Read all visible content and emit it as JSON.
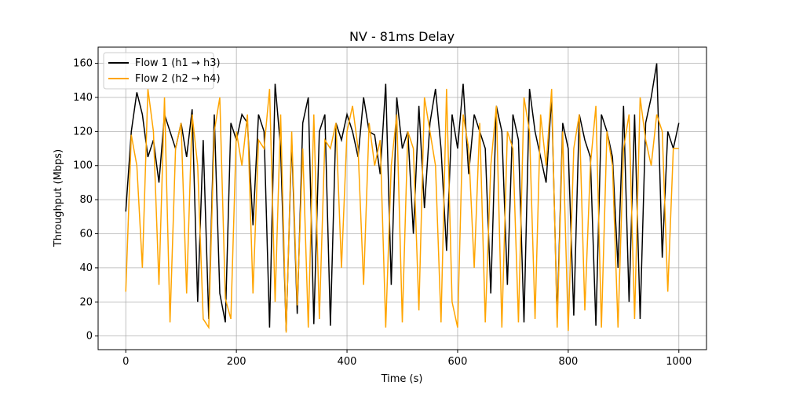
{
  "chart_data": {
    "type": "line",
    "title": "NV - 81ms Delay",
    "xlabel": "Time (s)",
    "ylabel": "Throughput (Mbps)",
    "x": [
      0,
      10,
      20,
      30,
      40,
      50,
      60,
      70,
      80,
      90,
      100,
      110,
      120,
      130,
      140,
      150,
      160,
      170,
      180,
      190,
      200,
      210,
      220,
      230,
      240,
      250,
      260,
      270,
      280,
      290,
      300,
      310,
      320,
      330,
      340,
      350,
      360,
      370,
      380,
      390,
      400,
      410,
      420,
      430,
      440,
      450,
      460,
      470,
      480,
      490,
      500,
      510,
      520,
      530,
      540,
      550,
      560,
      570,
      580,
      590,
      600,
      610,
      620,
      630,
      640,
      650,
      660,
      670,
      680,
      690,
      700,
      710,
      720,
      730,
      740,
      750,
      760,
      770,
      780,
      790,
      800,
      810,
      820,
      830,
      840,
      850,
      860,
      870,
      880,
      890,
      900,
      910,
      920,
      930,
      940,
      950,
      960,
      970,
      980,
      990,
      1000
    ],
    "series": [
      {
        "name": "Flow 1 (h1 → h3)",
        "color": "#000000",
        "values": [
          73,
          120,
          143,
          130,
          105,
          115,
          90,
          130,
          120,
          110,
          125,
          105,
          133,
          20,
          115,
          10,
          130,
          25,
          8,
          125,
          115,
          130,
          125,
          65,
          130,
          120,
          5,
          148,
          110,
          3,
          115,
          13,
          125,
          140,
          7,
          120,
          130,
          6,
          125,
          115,
          130,
          120,
          105,
          140,
          120,
          118,
          95,
          148,
          30,
          140,
          110,
          120,
          60,
          135,
          75,
          125,
          145,
          110,
          50,
          130,
          110,
          148,
          95,
          130,
          120,
          110,
          25,
          135,
          120,
          30,
          130,
          115,
          8,
          145,
          120,
          105,
          90,
          140,
          10,
          125,
          110,
          12,
          130,
          115,
          105,
          6,
          130,
          120,
          105,
          40,
          135,
          20,
          130,
          10,
          125,
          140,
          160,
          46,
          120,
          110,
          125
        ]
      },
      {
        "name": "Flow 2 (h2 → h4)",
        "color": "#ffa500",
        "values": [
          26,
          118,
          100,
          40,
          145,
          120,
          30,
          140,
          8,
          110,
          125,
          25,
          130,
          100,
          10,
          5,
          120,
          140,
          22,
          10,
          120,
          100,
          130,
          25,
          115,
          110,
          145,
          20,
          130,
          2,
          120,
          18,
          110,
          5,
          130,
          10,
          115,
          110,
          125,
          40,
          120,
          135,
          110,
          30,
          125,
          100,
          115,
          5,
          100,
          130,
          8,
          120,
          110,
          15,
          140,
          120,
          100,
          8,
          145,
          20,
          5,
          130,
          110,
          40,
          125,
          8,
          100,
          135,
          5,
          120,
          110,
          8,
          140,
          120,
          10,
          130,
          100,
          145,
          5,
          120,
          3,
          110,
          130,
          15,
          100,
          135,
          5,
          120,
          100,
          5,
          110,
          130,
          10,
          140,
          115,
          100,
          130,
          120,
          26,
          110,
          110
        ]
      }
    ],
    "xlim": [
      -50,
      1050
    ],
    "ylim": [
      -8,
      169.5
    ],
    "xticks": [
      0,
      200,
      400,
      600,
      800,
      1000
    ],
    "yticks": [
      0,
      20,
      40,
      60,
      80,
      100,
      120,
      140,
      160
    ],
    "grid": true,
    "legend": "upper left"
  }
}
